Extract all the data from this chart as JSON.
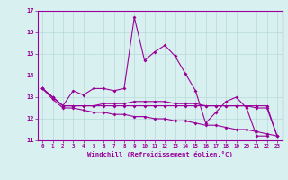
{
  "xlabel": "Windchill (Refroidissement éolien,°C)",
  "bg_color": "#d8f0f0",
  "grid_color": "#b8dada",
  "line_color": "#990099",
  "xlim": [
    -0.5,
    23.5
  ],
  "ylim": [
    11,
    17
  ],
  "yticks": [
    11,
    12,
    13,
    14,
    15,
    16,
    17
  ],
  "xticks": [
    0,
    1,
    2,
    3,
    4,
    5,
    6,
    7,
    8,
    9,
    10,
    11,
    12,
    13,
    14,
    15,
    16,
    17,
    18,
    19,
    20,
    21,
    22,
    23
  ],
  "series1_x": [
    0,
    1,
    2,
    3,
    4,
    5,
    6,
    7,
    8,
    9,
    10,
    11,
    12,
    13,
    14,
    15,
    16,
    17,
    18,
    19,
    20,
    21,
    22
  ],
  "series1_y": [
    13.4,
    13.0,
    12.6,
    13.3,
    13.1,
    13.4,
    13.4,
    13.3,
    13.4,
    16.7,
    14.7,
    15.1,
    15.4,
    14.9,
    14.1,
    13.3,
    11.8,
    12.3,
    12.8,
    13.0,
    12.5,
    11.2,
    11.2
  ],
  "series2_x": [
    0,
    1,
    2,
    3,
    4,
    5,
    6,
    7,
    8,
    9,
    10,
    11,
    12,
    13,
    14,
    15,
    16,
    17,
    18,
    19,
    20,
    21,
    22,
    23
  ],
  "series2_y": [
    13.4,
    13.0,
    12.6,
    12.6,
    12.6,
    12.6,
    12.6,
    12.6,
    12.6,
    12.6,
    12.6,
    12.6,
    12.6,
    12.6,
    12.6,
    12.6,
    12.6,
    12.6,
    12.6,
    12.6,
    12.6,
    12.6,
    12.6,
    11.2
  ],
  "series3_x": [
    0,
    1,
    2,
    3,
    4,
    5,
    6,
    7,
    8,
    9,
    10,
    11,
    12,
    13,
    14,
    15,
    16,
    17,
    18,
    19,
    20,
    21,
    22,
    23
  ],
  "series3_y": [
    13.4,
    12.9,
    12.5,
    12.5,
    12.4,
    12.3,
    12.3,
    12.2,
    12.2,
    12.1,
    12.1,
    12.0,
    12.0,
    11.9,
    11.9,
    11.8,
    11.7,
    11.7,
    11.6,
    11.5,
    11.5,
    11.4,
    11.3,
    11.2
  ],
  "series4_x": [
    0,
    1,
    2,
    3,
    4,
    5,
    6,
    7,
    8,
    9,
    10,
    11,
    12,
    13,
    14,
    15,
    16,
    17,
    18,
    19,
    20,
    21,
    22,
    23
  ],
  "series4_y": [
    13.4,
    13.0,
    12.6,
    12.6,
    12.6,
    12.6,
    12.7,
    12.7,
    12.7,
    12.8,
    12.8,
    12.8,
    12.8,
    12.7,
    12.7,
    12.7,
    12.6,
    12.6,
    12.6,
    12.6,
    12.6,
    12.5,
    12.5,
    11.2
  ]
}
